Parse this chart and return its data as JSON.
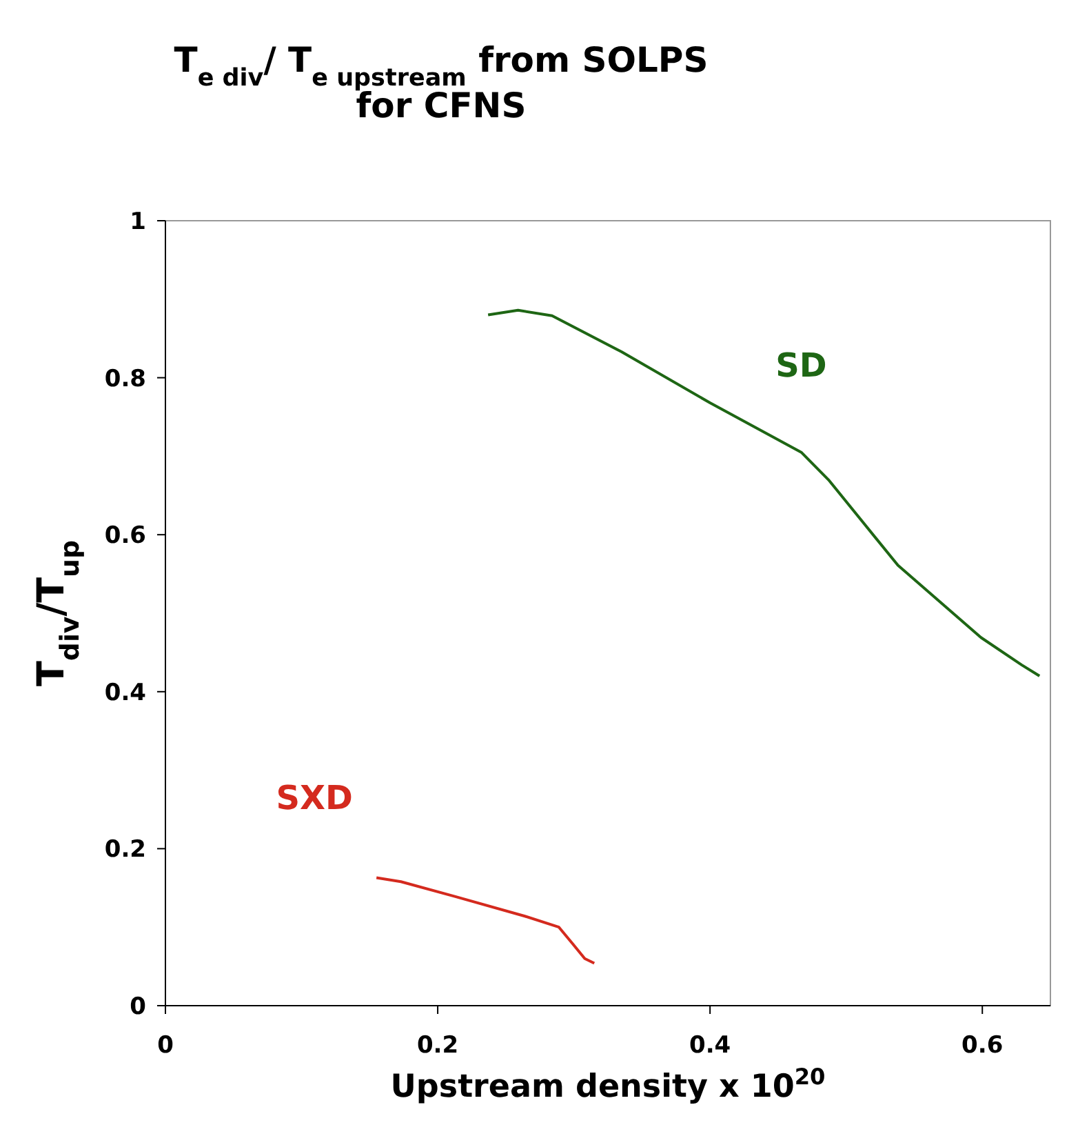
{
  "chart_data": {
    "type": "line",
    "title": "T$_{e div}$/ T$_{e upstream}$ from SOLPS\nfor CFNS",
    "xlabel": "Upstream density x 10$^{20}$",
    "ylabel": "T$_{div}$/T$_{up}$",
    "xlim": [
      0,
      0.65
    ],
    "xticks": [
      0,
      0.2,
      0.4,
      0.6
    ],
    "ylim": [
      0,
      1
    ],
    "yticks": [
      0,
      0.2,
      0.4,
      0.6,
      0.8,
      1
    ],
    "grid": false,
    "marker": "none",
    "line_style": "solid",
    "series": [
      {
        "name": "SD",
        "color": "#1e6614",
        "x": [
          0.237,
          0.259,
          0.284,
          0.335,
          0.4,
          0.467,
          0.487,
          0.538,
          0.599,
          0.629,
          0.642
        ],
        "values": [
          0.88,
          0.886,
          0.879,
          0.833,
          0.768,
          0.705,
          0.67,
          0.561,
          0.469,
          0.434,
          0.42
        ]
      },
      {
        "name": "SXD",
        "color": "#d42a1e",
        "x": [
          0.155,
          0.173,
          0.213,
          0.264,
          0.289,
          0.299,
          0.308,
          0.315
        ],
        "values": [
          0.163,
          0.158,
          0.139,
          0.114,
          0.1,
          0.079,
          0.06,
          0.054
        ]
      }
    ]
  }
}
